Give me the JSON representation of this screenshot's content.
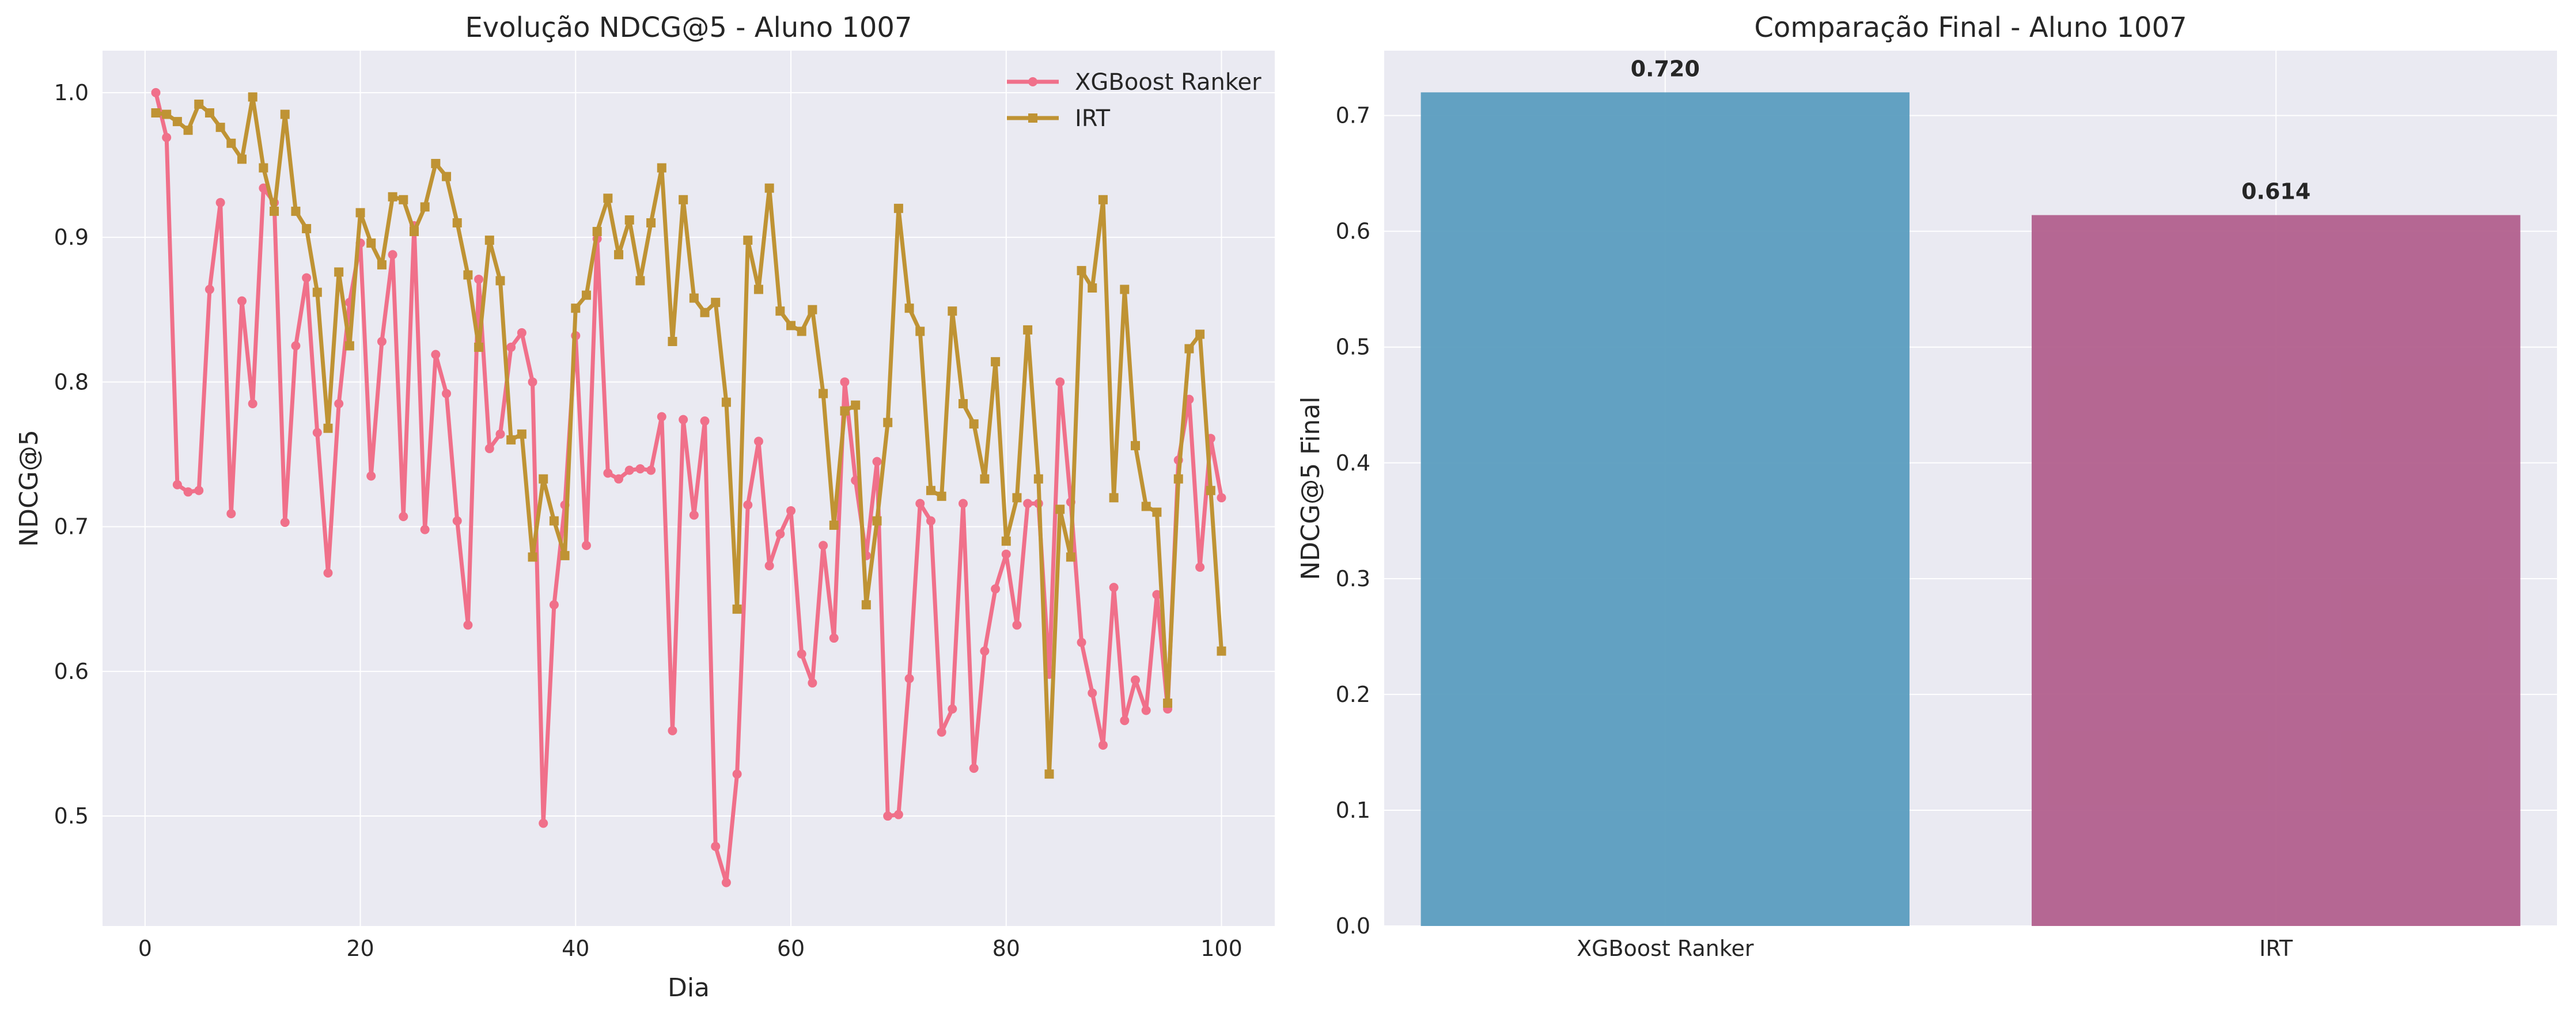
{
  "chart_data": [
    {
      "type": "line",
      "title": "Evolução NDCG@5 - Aluno 1007",
      "xlabel": "Dia",
      "ylabel": "NDCG@5",
      "xlim": [
        -3.95,
        104.95
      ],
      "ylim": [
        0.424,
        1.029
      ],
      "xticks": [
        0,
        20,
        40,
        60,
        80,
        100
      ],
      "yticks": [
        0.5,
        0.6,
        0.7,
        0.8,
        0.9,
        1.0
      ],
      "grid": true,
      "legend_position": "top-right",
      "x": [
        1,
        2,
        3,
        4,
        5,
        6,
        7,
        8,
        9,
        10,
        11,
        12,
        13,
        14,
        15,
        16,
        17,
        18,
        19,
        20,
        21,
        22,
        23,
        24,
        25,
        26,
        27,
        28,
        29,
        30,
        31,
        32,
        33,
        34,
        35,
        36,
        37,
        38,
        39,
        40,
        41,
        42,
        43,
        44,
        45,
        46,
        47,
        48,
        49,
        50,
        51,
        52,
        53,
        54,
        55,
        56,
        57,
        58,
        59,
        60,
        61,
        62,
        63,
        64,
        65,
        66,
        67,
        68,
        69,
        70,
        71,
        72,
        73,
        74,
        75,
        76,
        77,
        78,
        79,
        80,
        81,
        82,
        83,
        84,
        85,
        86,
        87,
        88,
        89,
        90,
        91,
        92,
        93,
        94,
        95,
        96,
        97,
        98,
        99,
        100
      ],
      "series": [
        {
          "name": "XGBoost Ranker",
          "color": "#f0708a",
          "marker": "circle",
          "values": [
            1.0,
            0.969,
            0.729,
            0.724,
            0.725,
            0.864,
            0.924,
            0.709,
            0.856,
            0.785,
            0.934,
            0.924,
            0.703,
            0.825,
            0.872,
            0.765,
            0.668,
            0.785,
            0.855,
            0.896,
            0.735,
            0.828,
            0.888,
            0.707,
            0.908,
            0.698,
            0.819,
            0.792,
            0.704,
            0.632,
            0.871,
            0.754,
            0.764,
            0.824,
            0.834,
            0.8,
            0.495,
            0.646,
            0.715,
            0.832,
            0.687,
            0.899,
            0.737,
            0.733,
            0.739,
            0.74,
            0.739,
            0.776,
            0.559,
            0.774,
            0.708,
            0.773,
            0.479,
            0.454,
            0.529,
            0.715,
            0.759,
            0.673,
            0.695,
            0.711,
            0.612,
            0.592,
            0.687,
            0.623,
            0.8,
            0.732,
            0.68,
            0.745,
            0.5,
            0.501,
            0.595,
            0.716,
            0.704,
            0.558,
            0.574,
            0.716,
            0.533,
            0.614,
            0.657,
            0.681,
            0.632,
            0.716,
            0.716,
            0.598,
            0.8,
            0.717,
            0.62,
            0.585,
            0.549,
            0.658,
            0.566,
            0.594,
            0.573,
            0.653,
            0.574,
            0.746,
            0.788,
            0.672,
            0.761,
            0.72
          ]
        },
        {
          "name": "IRT",
          "color": "#bf9334",
          "marker": "square",
          "values": [
            0.986,
            0.985,
            0.98,
            0.974,
            0.992,
            0.986,
            0.976,
            0.965,
            0.954,
            0.997,
            0.948,
            0.918,
            0.985,
            0.918,
            0.906,
            0.862,
            0.768,
            0.876,
            0.825,
            0.917,
            0.896,
            0.881,
            0.928,
            0.926,
            0.904,
            0.921,
            0.951,
            0.942,
            0.91,
            0.874,
            0.824,
            0.898,
            0.87,
            0.76,
            0.764,
            0.679,
            0.733,
            0.704,
            0.68,
            0.851,
            0.86,
            0.904,
            0.927,
            0.888,
            0.912,
            0.87,
            0.91,
            0.948,
            0.828,
            0.926,
            0.858,
            0.848,
            0.855,
            0.786,
            0.643,
            0.898,
            0.864,
            0.934,
            0.849,
            0.839,
            0.835,
            0.85,
            0.792,
            0.701,
            0.78,
            0.784,
            0.646,
            0.704,
            0.772,
            0.92,
            0.851,
            0.835,
            0.725,
            0.721,
            0.849,
            0.785,
            0.771,
            0.733,
            0.814,
            0.69,
            0.72,
            0.836,
            0.733,
            0.529,
            0.712,
            0.679,
            0.877,
            0.865,
            0.926,
            0.72,
            0.864,
            0.756,
            0.714,
            0.71,
            0.578,
            0.733,
            0.823,
            0.833,
            0.725,
            0.614
          ]
        }
      ]
    },
    {
      "type": "bar",
      "title": "Comparação Final - Aluno 1007",
      "xlabel": "",
      "ylabel": "NDCG@5 Final",
      "ylim": [
        0,
        0.756
      ],
      "yticks": [
        0.0,
        0.1,
        0.2,
        0.3,
        0.4,
        0.5,
        0.6,
        0.7
      ],
      "grid": true,
      "categories": [
        "XGBoost Ranker",
        "IRT"
      ],
      "values": [
        0.72,
        0.614
      ],
      "value_labels": [
        "0.720",
        "0.614"
      ],
      "colors": [
        "#5b9dbf",
        "#b2608d"
      ]
    }
  ]
}
